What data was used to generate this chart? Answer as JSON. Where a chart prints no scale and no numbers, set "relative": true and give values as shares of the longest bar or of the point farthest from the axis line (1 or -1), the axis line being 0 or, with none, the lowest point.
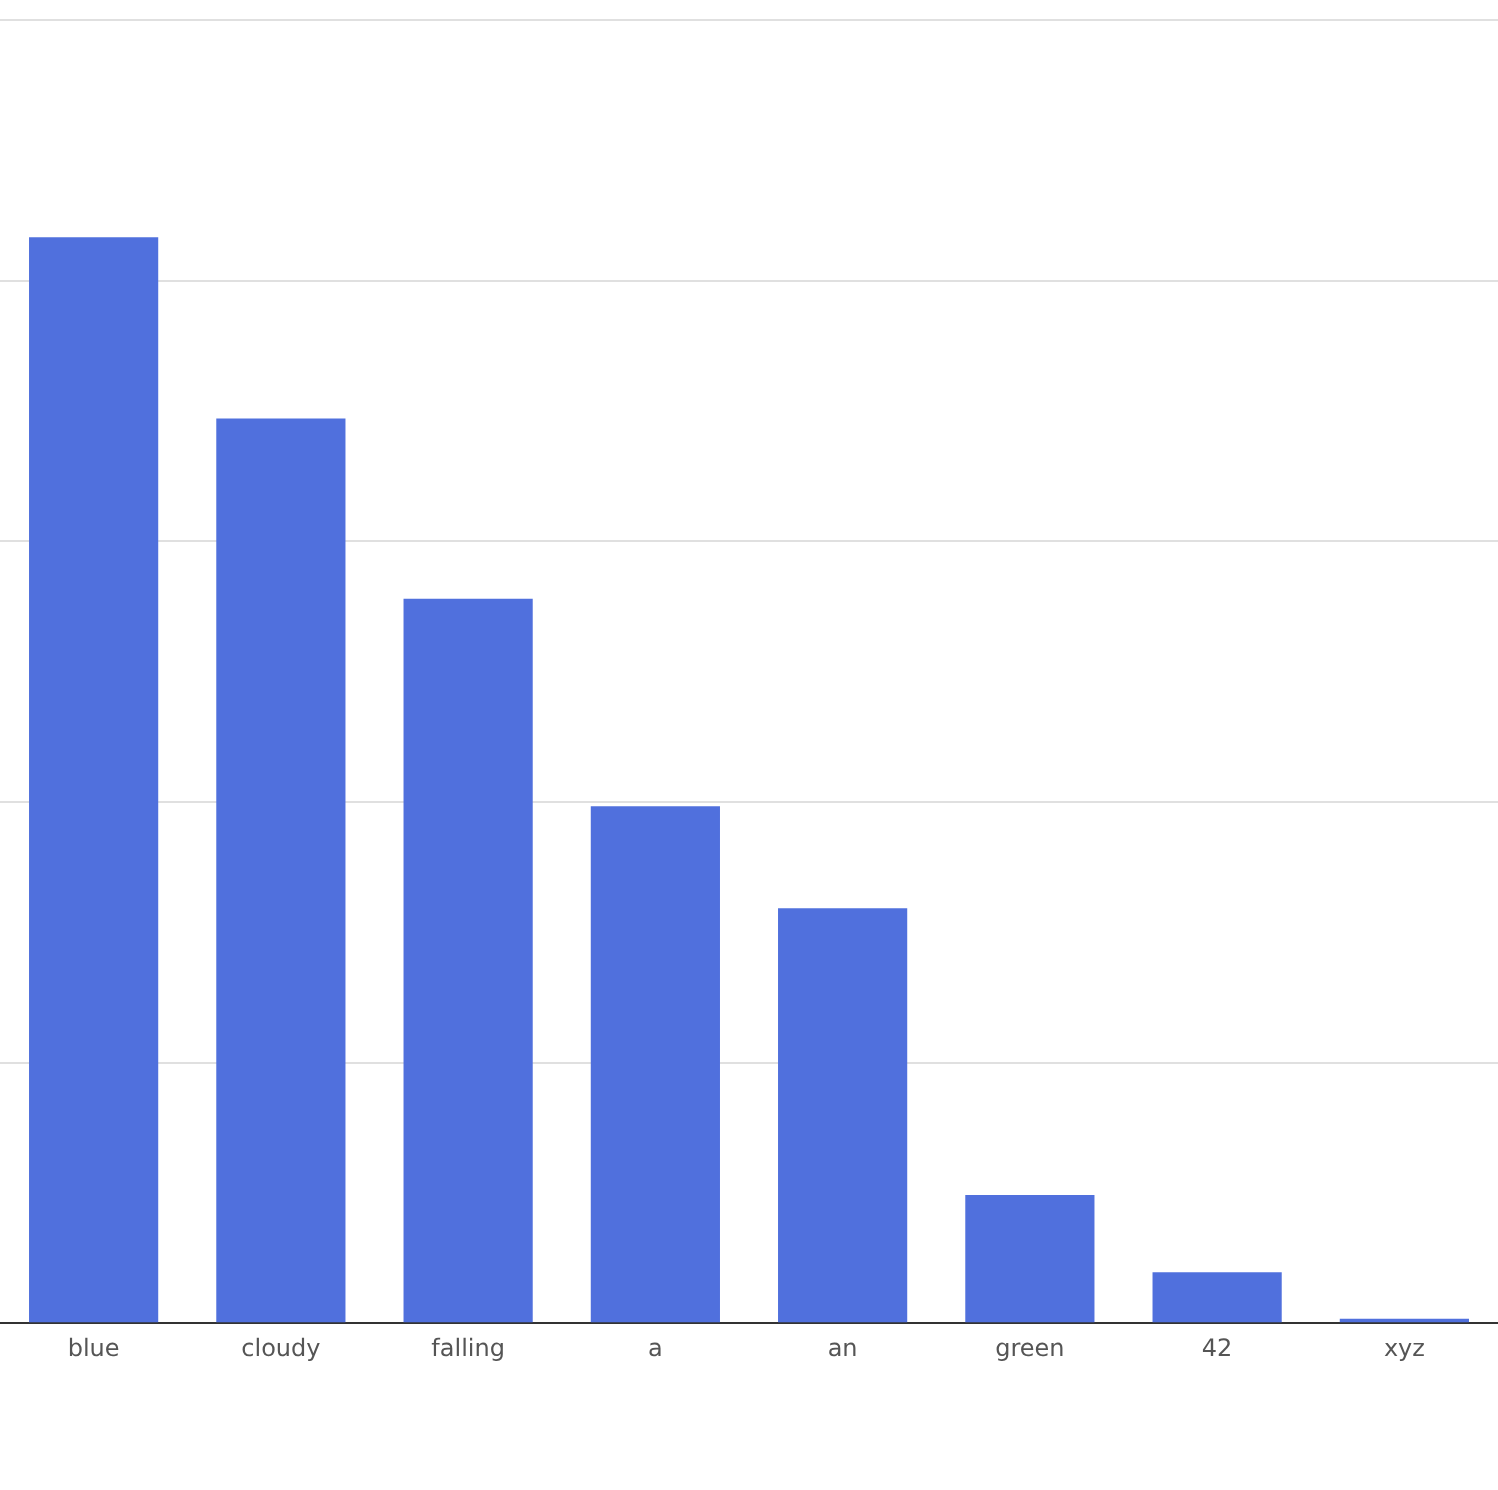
{
  "chart_data": {
    "type": "bar",
    "relative": true,
    "grid": "y",
    "categories": [
      "blue",
      "cloudy",
      "falling",
      "a",
      "an",
      "green",
      "42",
      "xyz"
    ],
    "values": [
      1,
      0.833,
      0.667,
      0.476,
      0.382,
      0.118,
      0.047,
      0.004
    ],
    "color": "#5070dd"
  }
}
